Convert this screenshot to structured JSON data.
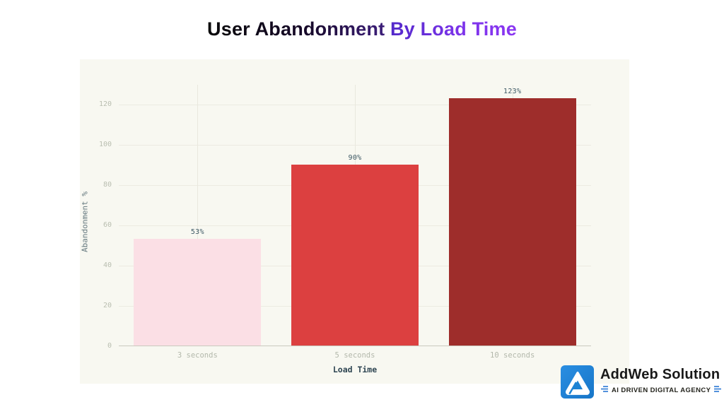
{
  "page": {
    "background": "#ffffff"
  },
  "title": {
    "part_dark": "User Abandonment ",
    "part_purple": "By Load Time",
    "color_dark": "#17092a",
    "color_purple": "#8a36f2"
  },
  "chart_data": {
    "type": "bar",
    "title": "User Abandonment By Load Time",
    "categories": [
      "3 seconds",
      "5 seconds",
      "10 seconds"
    ],
    "values": [
      53,
      90,
      123
    ],
    "value_labels": [
      "53%",
      "90%",
      "123%"
    ],
    "bar_colors": [
      "#fbdfe5",
      "#dc4040",
      "#9e2d2b"
    ],
    "xlabel": "Load Time",
    "ylabel": "Abandonment %",
    "ylim": [
      0,
      130
    ],
    "yticks": [
      0,
      20,
      40,
      60,
      80,
      100,
      120
    ],
    "grid": true,
    "legend": false,
    "plot_background": "#f8f8f1"
  },
  "logo": {
    "brand": "AddWeb Solution",
    "tagline": "AI DRIVEN DIGITAL AGENCY",
    "icon": "addweb-a-icon",
    "accent_blue": "#1d83d4",
    "glyph_blue": "#3b82d8"
  }
}
